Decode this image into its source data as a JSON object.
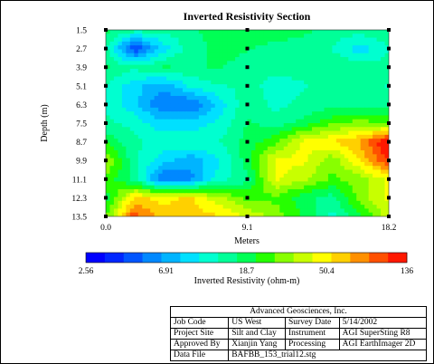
{
  "chart_data": {
    "type": "heatmap",
    "title": "Inverted Resistivity Section",
    "xlabel": "Meters",
    "ylabel": "Depth (m)",
    "x_ticks": [
      "0.0",
      "9.1",
      "18.2"
    ],
    "y_ticks": [
      "1.5",
      "2.7",
      "3.9",
      "5.1",
      "6.3",
      "7.5",
      "8.7",
      "9.9",
      "11.1",
      "12.3",
      "13.5"
    ],
    "x": [
      0.0,
      1.82,
      3.64,
      5.46,
      7.28,
      9.1,
      10.92,
      12.74,
      14.56,
      16.38,
      18.2
    ],
    "y": [
      1.5,
      2.7,
      3.9,
      5.1,
      6.3,
      7.5,
      8.7,
      9.9,
      11.1,
      12.3,
      13.5
    ],
    "values": [
      [
        18,
        15,
        14,
        16,
        18,
        20,
        20,
        18,
        15,
        15,
        16
      ],
      [
        14,
        4,
        9,
        15,
        18,
        17,
        15,
        14,
        13,
        9,
        13
      ],
      [
        17,
        14,
        17,
        16,
        17,
        15,
        14,
        14,
        16,
        15,
        14
      ],
      [
        13,
        9,
        7,
        11,
        13,
        14,
        12,
        13,
        14,
        14,
        13
      ],
      [
        12,
        9,
        5,
        5,
        9,
        16,
        12,
        14,
        15,
        15,
        15
      ],
      [
        14,
        12,
        9,
        9,
        11,
        17,
        15,
        18,
        25,
        30,
        25
      ],
      [
        20,
        14,
        12,
        13,
        13,
        18,
        25,
        45,
        55,
        70,
        150
      ],
      [
        35,
        14,
        9,
        7,
        10,
        19,
        45,
        45,
        28,
        55,
        110
      ],
      [
        25,
        15,
        5,
        6,
        12,
        15,
        45,
        35,
        25,
        30,
        45
      ],
      [
        18,
        55,
        50,
        55,
        35,
        25,
        25,
        18,
        15,
        30,
        45
      ],
      [
        25,
        100,
        60,
        60,
        55,
        40,
        30,
        20,
        12,
        20,
        40
      ]
    ],
    "colorbar": {
      "label": "Inverted Resistivity (ohm-m)",
      "tick_labels": [
        "2.56",
        "6.91",
        "18.7",
        "50.4",
        "136"
      ],
      "tick_values": [
        2.56,
        6.91,
        18.7,
        50.4,
        136
      ],
      "scale": "log",
      "colors": [
        "#0000ff",
        "#0026ff",
        "#0055ff",
        "#0088ff",
        "#00b4ff",
        "#00e0ff",
        "#00ffd0",
        "#00ff98",
        "#00ff55",
        "#26ff00",
        "#88ff00",
        "#c8ff00",
        "#ffff00",
        "#ffd000",
        "#ff9000",
        "#ff5000",
        "#ff1800"
      ]
    },
    "electrode_columns_m": [
      0.0,
      9.1,
      18.2
    ]
  },
  "info": {
    "company": "Advanced Geosciences, Inc.",
    "job_code_label": "Job Code",
    "job_code": "US West",
    "survey_date_label": "Survey Date",
    "survey_date": "5/14/2002",
    "project_site_label": "Project Site",
    "project_site": "Silt and Clay",
    "instrument_label": "Instrument",
    "instrument": "AGI SuperSting R8",
    "approved_by_label": "Approved By",
    "approved_by": "Xianjin Yang",
    "processing_label": "Processing",
    "processing": "AGI EarthImager 2D",
    "data_file_label": "Data File",
    "data_file": "BAFBB_153_trial12.stg"
  }
}
